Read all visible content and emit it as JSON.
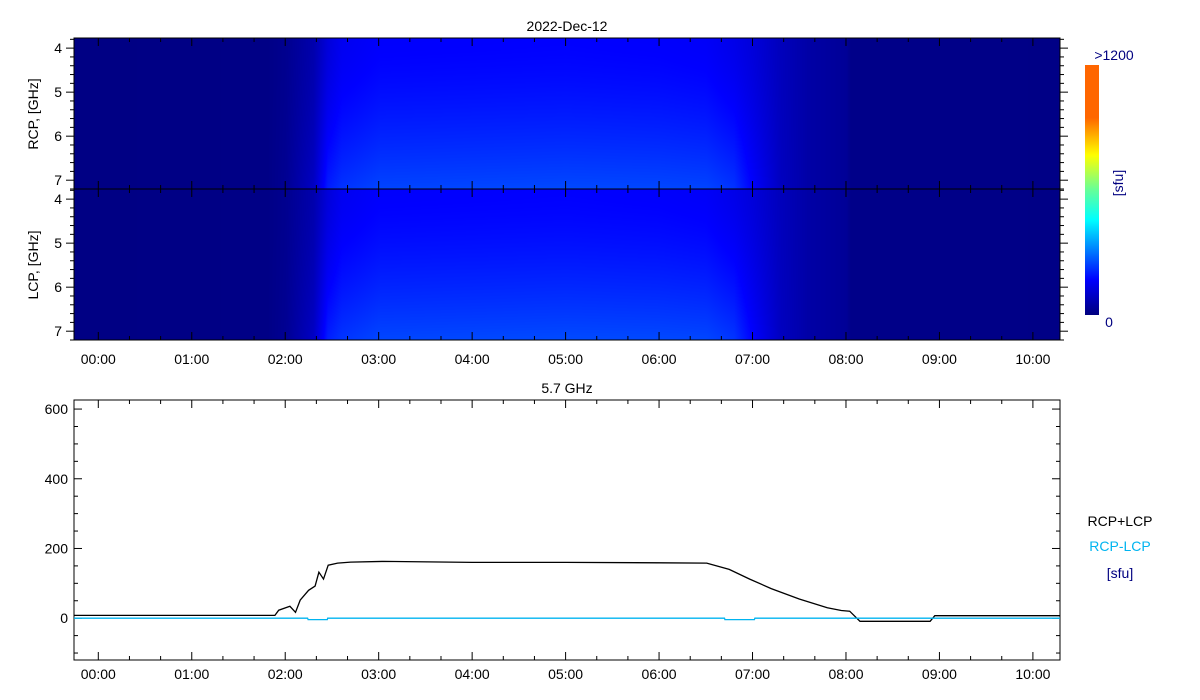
{
  "chart_data": [
    {
      "type": "heatmap",
      "title": "2022-Dec-12",
      "panels": [
        {
          "ylabel": "RCP, [GHz]"
        },
        {
          "ylabel": "LCP, [GHz]"
        }
      ],
      "ylim": [
        3.77,
        7.2
      ],
      "yticks": [
        "4",
        "5",
        "6",
        "7"
      ],
      "xlim_hours": [
        -0.26,
        10.29
      ],
      "xticks": [
        "00:00",
        "01:00",
        "02:00",
        "03:00",
        "04:00",
        "05:00",
        "06:00",
        "07:00",
        "08:00",
        "09:00",
        "10:00"
      ],
      "colorbar": {
        "min_label": "0",
        "max_label": ">1200",
        "label": "[sfu]",
        "range": [
          0,
          1200
        ],
        "colormap": [
          [
            0,
            "#000080"
          ],
          [
            0.14,
            "#0000ff"
          ],
          [
            0.38,
            "#00ffff"
          ],
          [
            0.5,
            "#66ff99"
          ],
          [
            0.64,
            "#ffff00"
          ],
          [
            0.79,
            "#ff6600"
          ],
          [
            1,
            "#ff6600"
          ]
        ]
      },
      "time_hours": [
        -0.26,
        1.8,
        2.0,
        2.3,
        2.45,
        2.6,
        3.0,
        5.0,
        6.0,
        6.5,
        6.8,
        7.0,
        7.3,
        7.6,
        8.0,
        8.05,
        10.29
      ],
      "freq_ghz": [
        3.77,
        7.2
      ],
      "values_sfu": [
        [
          5,
          8,
          20,
          60,
          120,
          150,
          165,
          168,
          165,
          160,
          140,
          120,
          80,
          50,
          30,
          12,
          8
        ],
        [
          5,
          8,
          25,
          90,
          200,
          225,
          245,
          250,
          248,
          245,
          225,
          165,
          85,
          50,
          30,
          12,
          8
        ]
      ]
    },
    {
      "type": "line",
      "title": "5.7 GHz",
      "ylim": [
        -120,
        626
      ],
      "yticks": [
        "0",
        "200",
        "400",
        "600"
      ],
      "xlim_hours": [
        -0.26,
        10.29
      ],
      "xticks": [
        "00:00",
        "01:00",
        "02:00",
        "03:00",
        "04:00",
        "05:00",
        "06:00",
        "07:00",
        "08:00",
        "09:00",
        "10:00"
      ],
      "legend": {
        "placement": "right",
        "unit": "[sfu]"
      },
      "series": [
        {
          "name": "RCP+LCP",
          "color": "#000000",
          "x": [
            -0.26,
            1.89,
            1.93,
            2.05,
            2.11,
            2.16,
            2.25,
            2.32,
            2.36,
            2.41,
            2.46,
            2.56,
            2.7,
            3.05,
            4.0,
            5.0,
            6.0,
            6.51,
            6.75,
            6.97,
            7.2,
            7.5,
            7.8,
            7.95,
            8.04,
            8.15,
            8.9,
            8.95,
            10.29
          ],
          "y": [
            8,
            8,
            23,
            34,
            17,
            52,
            80,
            92,
            132,
            112,
            152,
            158,
            161,
            163,
            160,
            160,
            159,
            158,
            140,
            112,
            85,
            55,
            30,
            22,
            20,
            -9,
            -9,
            7,
            7
          ]
        },
        {
          "name": "RCP-LCP",
          "color": "#00b4f0",
          "x": [
            -0.26,
            2.24,
            2.245,
            2.45,
            2.455,
            6.7,
            6.705,
            7.02,
            7.025,
            10.29
          ],
          "y": [
            0,
            0,
            -4,
            -4,
            0,
            0,
            -4,
            -4,
            0,
            0
          ]
        }
      ]
    }
  ],
  "colors": {
    "axis": "#000000",
    "label_navy": "#000080"
  }
}
